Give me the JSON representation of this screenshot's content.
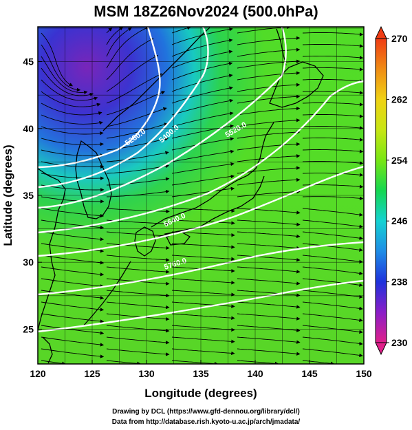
{
  "title": "MSM 18Z26Nov2024 (500.0hPa)",
  "credits": {
    "line1": "Drawing by DCL (https://www.gfd-dennou.org/library/dcl/)",
    "line2": "Data from http://database.rish.kyoto-u.ac.jp/arch/jmadata/"
  },
  "map": {
    "xlabel": "Longitude (degrees)",
    "ylabel": "Latitude  (degrees)",
    "lon_range": [
      120,
      150
    ],
    "lat_range": [
      22.4,
      47.6
    ],
    "lon_ticks": [
      "120",
      "125",
      "130",
      "135",
      "140",
      "145",
      "150"
    ],
    "lat_ticks": [
      "25",
      "30",
      "35",
      "40",
      "45"
    ],
    "grid_lon_step": 2.5,
    "grid_lat_step": 2.5,
    "contour_labels": [
      "5280.0",
      "5400.0",
      "5520.0",
      "5640.0",
      "5760.0"
    ]
  },
  "colorbar": {
    "min": 230,
    "max": 270,
    "tick_labels": [
      "270",
      "262",
      "254",
      "246",
      "238",
      "230"
    ],
    "colors": [
      "#e0208a",
      "#8a1ec8",
      "#1e32dc",
      "#1e8ce6",
      "#14d2d2",
      "#14d750",
      "#78e614",
      "#c8e614",
      "#f0d214",
      "#f08c14",
      "#f03c14"
    ]
  }
}
